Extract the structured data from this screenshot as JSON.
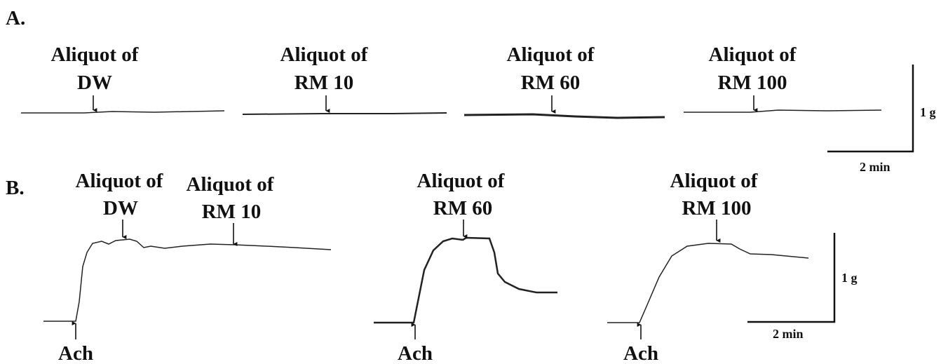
{
  "panels": [
    {
      "label": "A.",
      "annotations": [
        [
          "Aliquot of",
          "DW"
        ],
        [
          "Aliquot of",
          "RM 10"
        ],
        [
          "Aliquot of",
          "RM 60"
        ],
        [
          "Aliquot of",
          "RM 100"
        ]
      ],
      "scale": {
        "force": "1 g",
        "time": "2 min"
      }
    },
    {
      "label": "B.",
      "annotations": [
        [
          "Aliquot of",
          "DW"
        ],
        [
          "Aliquot of",
          "RM 10"
        ],
        [
          "Aliquot of",
          "RM 60"
        ],
        [
          "Aliquot of",
          "RM 100"
        ]
      ],
      "stimulus": [
        "Ach",
        "Ach",
        "Ach"
      ],
      "scale": {
        "force": "1 g",
        "time": "2 min"
      }
    }
  ]
}
